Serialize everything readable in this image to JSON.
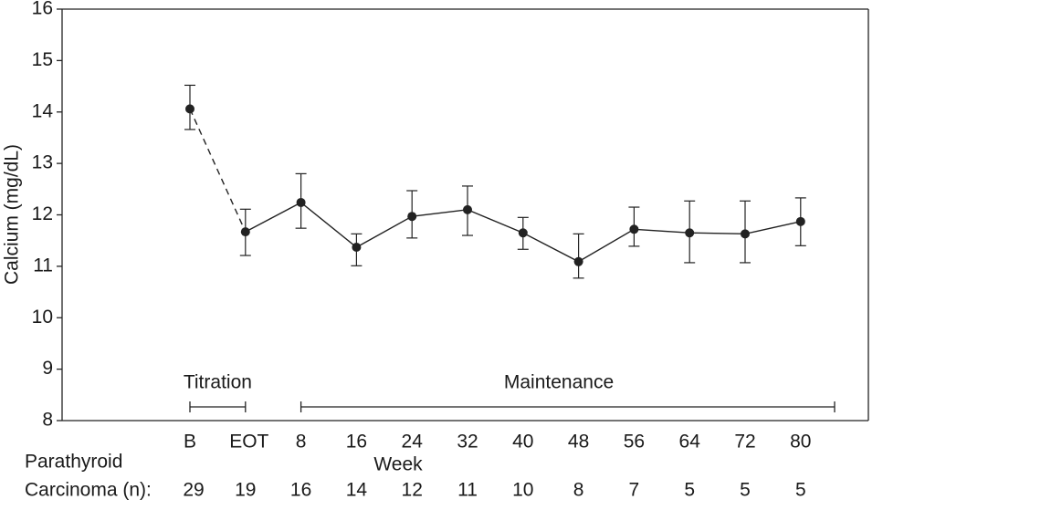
{
  "chart_data": {
    "type": "line",
    "y_label": "Calcium (mg/dL)",
    "x_label": "Week",
    "categories": [
      "B",
      "EOT",
      "8",
      "16",
      "24",
      "32",
      "40",
      "48",
      "56",
      "64",
      "72",
      "80"
    ],
    "values": [
      14.06,
      11.67,
      12.24,
      11.37,
      11.97,
      12.1,
      11.65,
      11.09,
      11.72,
      11.65,
      11.63,
      11.87
    ],
    "upper": [
      14.52,
      12.11,
      12.8,
      11.63,
      12.47,
      12.56,
      11.95,
      11.63,
      12.15,
      12.27,
      12.27,
      12.33
    ],
    "lower": [
      13.66,
      11.21,
      11.74,
      11.01,
      11.55,
      11.6,
      11.33,
      10.77,
      11.39,
      11.07,
      11.07,
      11.4
    ],
    "color": "#222222",
    "ylim": [
      8,
      16
    ],
    "yticks": [
      8,
      9,
      10,
      11,
      12,
      13,
      14,
      15,
      16
    ],
    "phases": [
      "Titration",
      "Maintenance"
    ],
    "n_label": [
      "Parathyroid",
      "Carcinoma (n):"
    ],
    "n": [
      29,
      19,
      16,
      14,
      12,
      11,
      10,
      8,
      7,
      5,
      5,
      5
    ]
  }
}
